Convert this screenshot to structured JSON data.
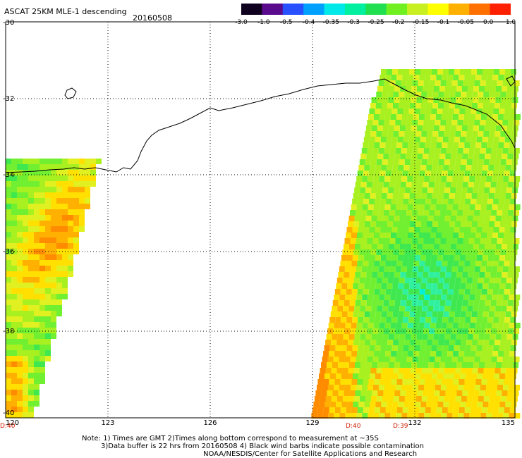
{
  "header": {
    "title": "ASCAT 25KM MLE-1 descending",
    "date": "20160508"
  },
  "colorbar": {
    "labels": [
      "-3.0",
      "-1.0",
      "-0.5",
      "-0.4",
      "-0.35",
      "-0.3",
      "-0.25",
      "-0.2",
      "-0.15",
      "-0.1",
      "-0.05",
      "0.0",
      "1.0"
    ],
    "colors": [
      "#100020",
      "#5a0a8c",
      "#2850ff",
      "#00a0ff",
      "#00e8e8",
      "#00f0a0",
      "#20e050",
      "#70f020",
      "#c8f020",
      "#ffff00",
      "#ffb000",
      "#ff7000",
      "#ff2000"
    ]
  },
  "axes": {
    "lon_labels": [
      "120",
      "123",
      "126",
      "129",
      "132",
      "135"
    ],
    "lat_labels": [
      "-30",
      "-32",
      "-34",
      "-36",
      "-38",
      "-40"
    ]
  },
  "pass_times": [
    "D:40",
    "D:40",
    "D:39"
  ],
  "notes": [
    "Note: 1) Times are GMT 2)Times along bottom correspond to measurement at ~35S",
    "3)Data buffer is 22 hrs from 20160508 4) Black wind barbs indicate possible contamination",
    "NOAA/NESDIS/Center for Satellite Applications and Research"
  ],
  "colors": {
    "background": "#ffffff",
    "coastline": "#000000",
    "time_label": "#d02000"
  }
}
